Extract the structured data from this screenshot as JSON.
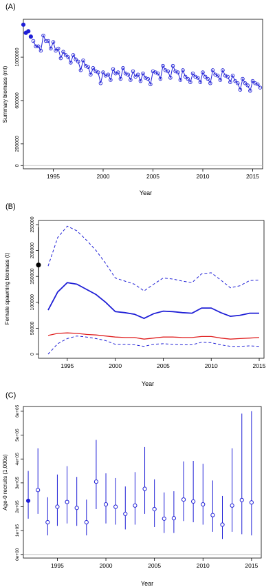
{
  "colors": {
    "blue": "#1f1fd6",
    "red": "#e02020",
    "black": "#000000",
    "grey": "#bbbbbb"
  },
  "chart_data": [
    {
      "panel_label": "(A)",
      "type": "line",
      "xlabel": "Year",
      "ylabel": "Summary biomass (mt)",
      "xlim": [
        1992,
        2016
      ],
      "ylim": [
        -30000,
        1350000
      ],
      "xticks": [
        "1995",
        "2000",
        "2005",
        "2010",
        "2015"
      ],
      "yticks": [
        "0",
        "200000",
        "600000",
        "1000000"
      ],
      "first_points": {
        "x": [
          1992.0,
          1992.25,
          1992.5,
          1992.75
        ],
        "y": [
          1300000,
          1225000,
          1240000,
          1190000
        ]
      },
      "series": [
        {
          "x": [
            1993.0,
            1993.25,
            1993.5,
            1993.75,
            1994.0,
            1994.25,
            1994.5,
            1994.75,
            1995.0,
            1995.25,
            1995.5,
            1995.75,
            1996.0,
            1996.25,
            1996.5,
            1996.75,
            1997.0,
            1997.25,
            1997.5,
            1997.75,
            1998.0,
            1998.25,
            1998.5,
            1998.75,
            1999.0,
            1999.25,
            1999.5,
            1999.75,
            2000.0,
            2000.25,
            2000.5,
            2000.75,
            2001.0,
            2001.25,
            2001.5,
            2001.75,
            2002.0,
            2002.25,
            2002.5,
            2002.75,
            2003.0,
            2003.25,
            2003.5,
            2003.75,
            2004.0,
            2004.25,
            2004.5,
            2004.75,
            2005.0,
            2005.25,
            2005.5,
            2005.75,
            2006.0,
            2006.25,
            2006.5,
            2006.75,
            2007.0,
            2007.25,
            2007.5,
            2007.75,
            2008.0,
            2008.25,
            2008.5,
            2008.75,
            2009.0,
            2009.25,
            2009.5,
            2009.75,
            2010.0,
            2010.25,
            2010.5,
            2010.75,
            2011.0,
            2011.25,
            2011.5,
            2011.75,
            2012.0,
            2012.25,
            2012.5,
            2012.75,
            2013.0,
            2013.25,
            2013.5,
            2013.75,
            2014.0,
            2014.25,
            2014.5,
            2014.75,
            2015.0,
            2015.25,
            2015.5,
            2015.75
          ],
          "y": [
            1150000,
            1100000,
            1100000,
            1060000,
            1200000,
            1150000,
            1150000,
            1080000,
            1140000,
            1060000,
            1080000,
            990000,
            1050000,
            1020000,
            1000000,
            950000,
            1020000,
            980000,
            960000,
            880000,
            970000,
            920000,
            910000,
            840000,
            900000,
            870000,
            860000,
            760000,
            860000,
            830000,
            840000,
            790000,
            890000,
            850000,
            860000,
            800000,
            900000,
            850000,
            840000,
            790000,
            870000,
            820000,
            840000,
            780000,
            850000,
            810000,
            800000,
            750000,
            870000,
            860000,
            850000,
            800000,
            920000,
            880000,
            870000,
            810000,
            920000,
            870000,
            860000,
            790000,
            880000,
            820000,
            800000,
            770000,
            850000,
            820000,
            810000,
            770000,
            860000,
            820000,
            800000,
            760000,
            880000,
            840000,
            830000,
            790000,
            880000,
            830000,
            820000,
            770000,
            830000,
            780000,
            760000,
            700000,
            800000,
            760000,
            740000,
            690000,
            780000,
            760000,
            750000,
            720000
          ]
        }
      ]
    },
    {
      "panel_label": "(B)",
      "type": "line",
      "xlabel": "Year",
      "ylabel": "Female spawning biomass (t)",
      "xlim": [
        1992,
        2015.5
      ],
      "ylim": [
        -8000,
        258000
      ],
      "xticks": [
        "1995",
        "2000",
        "2005",
        "2010",
        "2015"
      ],
      "yticks": [
        "0",
        "50000",
        "100000",
        "150000",
        "200000",
        "250000"
      ],
      "initial_estimate": {
        "x": 1992,
        "y": 172000,
        "lower": 97000,
        "upper": 245000
      },
      "series": [
        {
          "style": "estimate",
          "x": [
            1993,
            1994,
            1995,
            1996,
            1997,
            1998,
            1999,
            2000,
            2001,
            2002,
            2003,
            2004,
            2005,
            2006,
            2007,
            2008,
            2009,
            2010,
            2011,
            2012,
            2013,
            2014,
            2015
          ],
          "y": [
            85000,
            120000,
            138000,
            135000,
            125000,
            115000,
            100000,
            82000,
            80000,
            77000,
            69000,
            78000,
            83000,
            82000,
            80000,
            79000,
            89000,
            89000,
            80000,
            73000,
            75000,
            79000,
            79000
          ]
        },
        {
          "style": "upper",
          "x": [
            1993,
            1994,
            1995,
            1996,
            1997,
            1998,
            1999,
            2000,
            2001,
            2002,
            2003,
            2004,
            2005,
            2006,
            2007,
            2008,
            2009,
            2010,
            2011,
            2012,
            2013,
            2014,
            2015
          ],
          "y": [
            170000,
            225000,
            247000,
            238000,
            220000,
            200000,
            175000,
            147000,
            141000,
            135000,
            122000,
            135000,
            147000,
            145000,
            141000,
            138000,
            155000,
            157000,
            143000,
            128000,
            132000,
            142000,
            143000
          ]
        },
        {
          "style": "lower",
          "x": [
            1993,
            1994,
            1995,
            1996,
            1997,
            1998,
            1999,
            2000,
            2001,
            2002,
            2003,
            2004,
            2005,
            2006,
            2007,
            2008,
            2009,
            2010,
            2011,
            2012,
            2013,
            2014,
            2015
          ],
          "y": [
            0,
            20000,
            30000,
            35000,
            33000,
            30000,
            26000,
            19000,
            19000,
            18000,
            15000,
            19000,
            20000,
            19000,
            18000,
            18000,
            23000,
            22000,
            18000,
            15000,
            15000,
            16000,
            15000
          ]
        },
        {
          "style": "reference",
          "x": [
            1993,
            1994,
            1995,
            1996,
            1997,
            1998,
            1999,
            2000,
            2001,
            2002,
            2003,
            2004,
            2005,
            2006,
            2007,
            2008,
            2009,
            2010,
            2011,
            2012,
            2013,
            2014,
            2015
          ],
          "y": [
            36000,
            40000,
            41000,
            40000,
            38000,
            37000,
            35000,
            33000,
            32000,
            32000,
            29000,
            31000,
            33000,
            33000,
            32000,
            32000,
            34000,
            34000,
            31000,
            29000,
            30000,
            31000,
            32000
          ]
        }
      ]
    },
    {
      "panel_label": "(C)",
      "type": "scatter",
      "xlabel": "Year",
      "ylabel": "Age-0 recruits (1,000s)",
      "xlim": [
        1991.5,
        2016
      ],
      "ylim": [
        -15000,
        620000
      ],
      "xticks": [
        "1995",
        "2000",
        "2005",
        "2010",
        "2015"
      ],
      "yticks": [
        "0e+00",
        "1e+05",
        "2e+05",
        "3e+05",
        "4e+05",
        "5e+05",
        "6e+05"
      ],
      "first_point": {
        "x": 1992,
        "y": 225000,
        "lower": 150000,
        "upper": 350000
      },
      "points": [
        {
          "x": 1993,
          "y": 270000,
          "lower": 170000,
          "upper": 445000
        },
        {
          "x": 1994,
          "y": 135000,
          "lower": 80000,
          "upper": 240000
        },
        {
          "x": 1995,
          "y": 200000,
          "lower": 120000,
          "upper": 335000
        },
        {
          "x": 1996,
          "y": 220000,
          "lower": 130000,
          "upper": 370000
        },
        {
          "x": 1997,
          "y": 195000,
          "lower": 120000,
          "upper": 325000
        },
        {
          "x": 1998,
          "y": 135000,
          "lower": 80000,
          "upper": 230000
        },
        {
          "x": 1999,
          "y": 305000,
          "lower": 190000,
          "upper": 480000
        },
        {
          "x": 2000,
          "y": 210000,
          "lower": 130000,
          "upper": 340000
        },
        {
          "x": 2001,
          "y": 200000,
          "lower": 125000,
          "upper": 320000
        },
        {
          "x": 2002,
          "y": 170000,
          "lower": 105000,
          "upper": 285000
        },
        {
          "x": 2003,
          "y": 205000,
          "lower": 125000,
          "upper": 345000
        },
        {
          "x": 2004,
          "y": 275000,
          "lower": 170000,
          "upper": 450000
        },
        {
          "x": 2005,
          "y": 190000,
          "lower": 115000,
          "upper": 315000
        },
        {
          "x": 2006,
          "y": 150000,
          "lower": 90000,
          "upper": 260000
        },
        {
          "x": 2007,
          "y": 152000,
          "lower": 90000,
          "upper": 265000
        },
        {
          "x": 2008,
          "y": 230000,
          "lower": 140000,
          "upper": 390000
        },
        {
          "x": 2009,
          "y": 222000,
          "lower": 135000,
          "upper": 392000
        },
        {
          "x": 2010,
          "y": 210000,
          "lower": 125000,
          "upper": 380000
        },
        {
          "x": 2011,
          "y": 165000,
          "lower": 95000,
          "upper": 310000
        },
        {
          "x": 2012,
          "y": 125000,
          "lower": 65000,
          "upper": 245000
        },
        {
          "x": 2013,
          "y": 205000,
          "lower": 95000,
          "upper": 445000
        },
        {
          "x": 2014,
          "y": 228000,
          "lower": 85000,
          "upper": 590000
        },
        {
          "x": 2015,
          "y": 218000,
          "lower": 80000,
          "upper": 600000
        }
      ]
    }
  ]
}
